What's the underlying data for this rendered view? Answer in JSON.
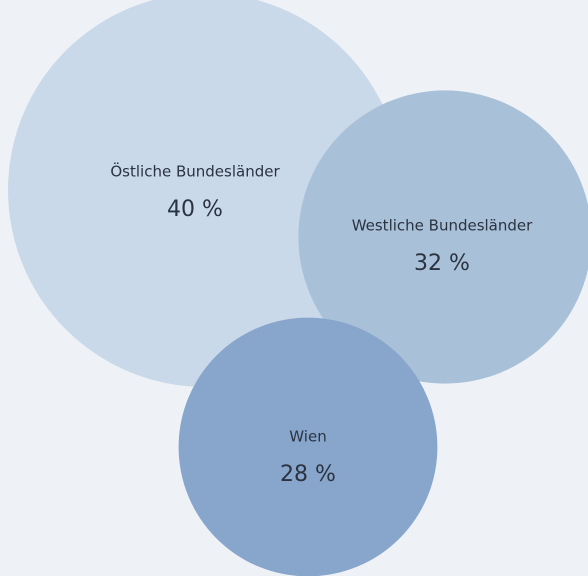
{
  "chart_data": {
    "type": "bubble",
    "categories": [
      "Östliche Bundesländer",
      "Westliche Bundesländer",
      "Wien"
    ],
    "values": [
      40,
      32,
      28
    ],
    "value_labels": [
      "40 %",
      "32 %",
      "28 %"
    ],
    "colors": [
      "#c9d9ea",
      "#a9c0d9",
      "#88a6cc"
    ]
  }
}
